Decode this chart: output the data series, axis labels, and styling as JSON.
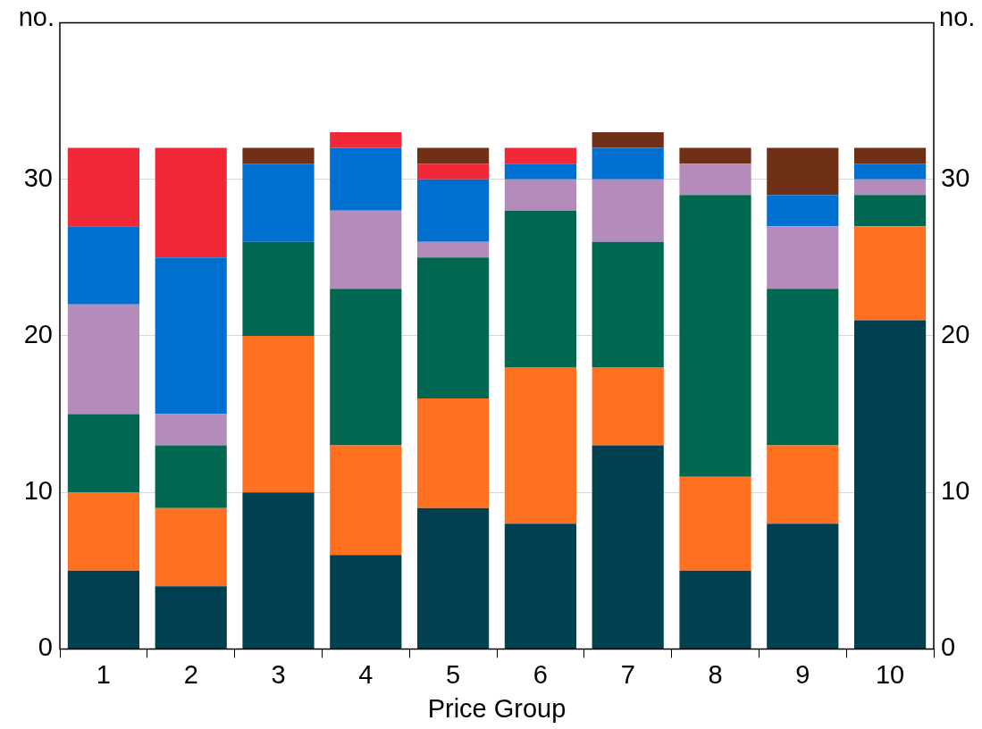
{
  "chart_data": {
    "type": "bar",
    "stacked": true,
    "xlabel": "Price Group",
    "ylabel": "no.",
    "y2label": "no.",
    "categories": [
      "1",
      "2",
      "3",
      "4",
      "5",
      "6",
      "7",
      "8",
      "9",
      "10"
    ],
    "series": [
      {
        "color": "#004050",
        "values": [
          5,
          4,
          10,
          6,
          9,
          8,
          13,
          5,
          8,
          21
        ]
      },
      {
        "color": "#ff7020",
        "values": [
          5,
          5,
          10,
          7,
          7,
          10,
          5,
          6,
          5,
          6
        ]
      },
      {
        "color": "#006850",
        "values": [
          5,
          4,
          6,
          10,
          9,
          10,
          8,
          18,
          10,
          2
        ]
      },
      {
        "color": "#b48cbc",
        "values": [
          7,
          2,
          0,
          5,
          1,
          2,
          4,
          2,
          4,
          1
        ]
      },
      {
        "color": "#0070d0",
        "values": [
          5,
          10,
          5,
          4,
          4,
          1,
          2,
          0,
          2,
          1
        ]
      },
      {
        "color": "#f02838",
        "values": [
          5,
          7,
          0,
          1,
          1,
          1,
          0,
          0,
          0,
          0
        ]
      },
      {
        "color": "#703018",
        "values": [
          0,
          0,
          1,
          0,
          1,
          0,
          1,
          1,
          3,
          1
        ]
      }
    ],
    "ylim": [
      0,
      40
    ],
    "yticks": [
      0,
      10,
      20,
      30
    ],
    "y2lim": [
      0,
      40
    ],
    "y2ticks": [
      0,
      10,
      20,
      30
    ],
    "grid": "y",
    "legend": false
  }
}
